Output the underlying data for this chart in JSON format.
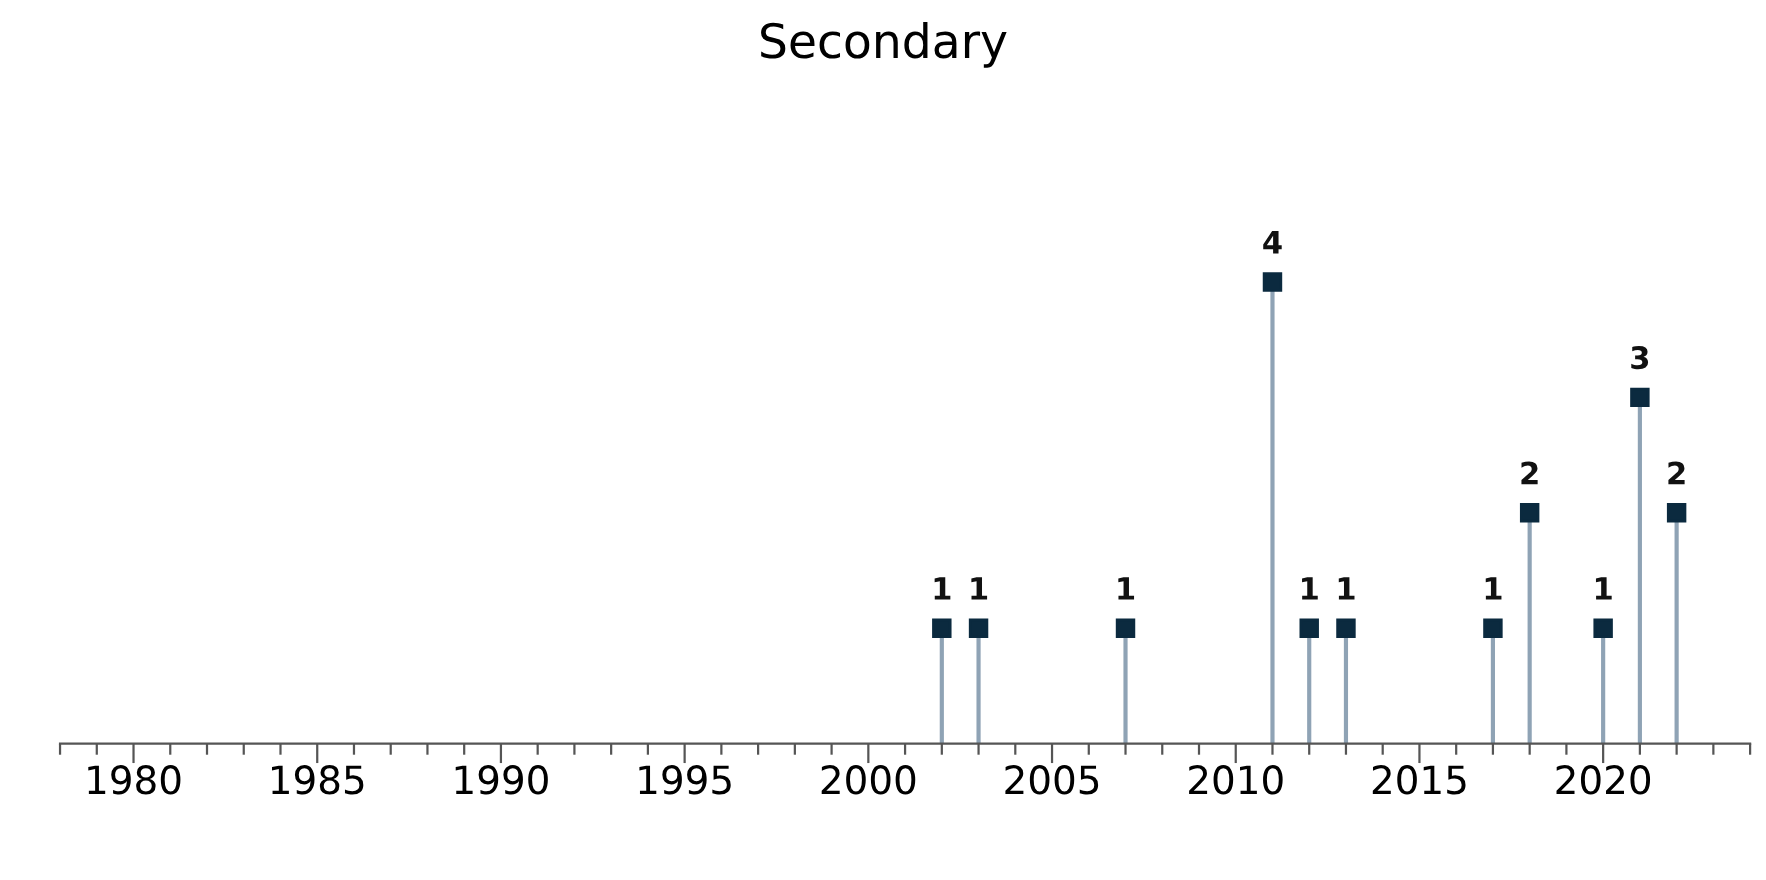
{
  "chart_data": {
    "type": "lollipop",
    "title": "Secondary",
    "x": [
      2002,
      2003,
      2007,
      2011,
      2012,
      2013,
      2017,
      2018,
      2020,
      2021,
      2022
    ],
    "series": [
      {
        "color": "#0b2a3f",
        "values": [
          1,
          1,
          1,
          4,
          1,
          1,
          1,
          2,
          1,
          3,
          2
        ]
      }
    ],
    "xlim": [
      1978,
      2024
    ],
    "xticks": [
      {
        "value": 1978,
        "label": null
      },
      {
        "value": 1979,
        "label": null
      },
      1980,
      {
        "value": 1981,
        "label": null
      },
      {
        "value": 1982,
        "label": null
      },
      {
        "value": 1983,
        "label": null
      },
      {
        "value": 1984,
        "label": null
      },
      1985,
      {
        "value": 1986,
        "label": null
      },
      {
        "value": 1987,
        "label": null
      },
      {
        "value": 1988,
        "label": null
      },
      {
        "value": 1989,
        "label": null
      },
      1990,
      {
        "value": 1991,
        "label": null
      },
      {
        "value": 1992,
        "label": null
      },
      {
        "value": 1993,
        "label": null
      },
      {
        "value": 1994,
        "label": null
      },
      1995,
      {
        "value": 1996,
        "label": null
      },
      {
        "value": 1997,
        "label": null
      },
      {
        "value": 1998,
        "label": null
      },
      {
        "value": 1999,
        "label": null
      },
      2000,
      {
        "value": 2001,
        "label": null
      },
      {
        "value": 2002,
        "label": null
      },
      {
        "value": 2003,
        "label": null
      },
      {
        "value": 2004,
        "label": null
      },
      2005,
      {
        "value": 2006,
        "label": null
      },
      {
        "value": 2007,
        "label": null
      },
      {
        "value": 2008,
        "label": null
      },
      {
        "value": 2009,
        "label": null
      },
      2010,
      {
        "value": 2011,
        "label": null
      },
      {
        "value": 2012,
        "label": null
      },
      {
        "value": 2013,
        "label": null
      },
      {
        "value": 2014,
        "label": null
      },
      2015,
      {
        "value": 2016,
        "label": null
      },
      {
        "value": 2017,
        "label": null
      },
      {
        "value": 2018,
        "label": null
      },
      {
        "value": 2019,
        "label": null
      },
      2020,
      {
        "value": 2021,
        "label": null
      },
      {
        "value": 2022,
        "label": null
      },
      {
        "value": 2023,
        "label": null
      },
      {
        "value": 2024,
        "label": null
      }
    ],
    "marker": "square",
    "data_labels": true,
    "tick_labels": "x"
  }
}
